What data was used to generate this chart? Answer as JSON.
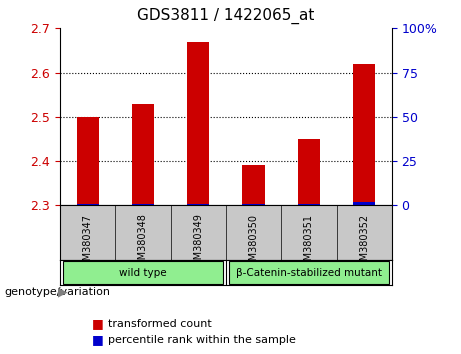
{
  "title": "GDS3811 / 1422065_at",
  "samples": [
    "GSM380347",
    "GSM380348",
    "GSM380349",
    "GSM380350",
    "GSM380351",
    "GSM380352"
  ],
  "transformed_count": [
    2.5,
    2.53,
    2.67,
    2.39,
    2.45,
    2.62
  ],
  "percentile_rank": [
    1,
    1,
    1,
    1,
    1,
    2
  ],
  "ylim_left": [
    2.3,
    2.7
  ],
  "ylim_right": [
    0,
    100
  ],
  "yticks_left": [
    2.3,
    2.4,
    2.5,
    2.6,
    2.7
  ],
  "yticks_right": [
    0,
    25,
    50,
    75,
    100
  ],
  "bar_color_red": "#CC0000",
  "bar_color_blue": "#0000CC",
  "bar_width": 0.4,
  "groups": [
    {
      "label": "wild type",
      "indices": [
        0,
        1,
        2
      ],
      "color": "#90EE90"
    },
    {
      "label": "β-Catenin-stabilized mutant",
      "indices": [
        3,
        4,
        5
      ],
      "color": "#90EE90"
    }
  ],
  "group_bg_color": "#C8C8C8",
  "plot_bg_color": "#FFFFFF",
  "label_transformed": "transformed count",
  "label_percentile": "percentile rank within the sample",
  "genotype_label": "genotype/variation",
  "left_tick_color": "#CC0000",
  "right_tick_color": "#0000CC"
}
